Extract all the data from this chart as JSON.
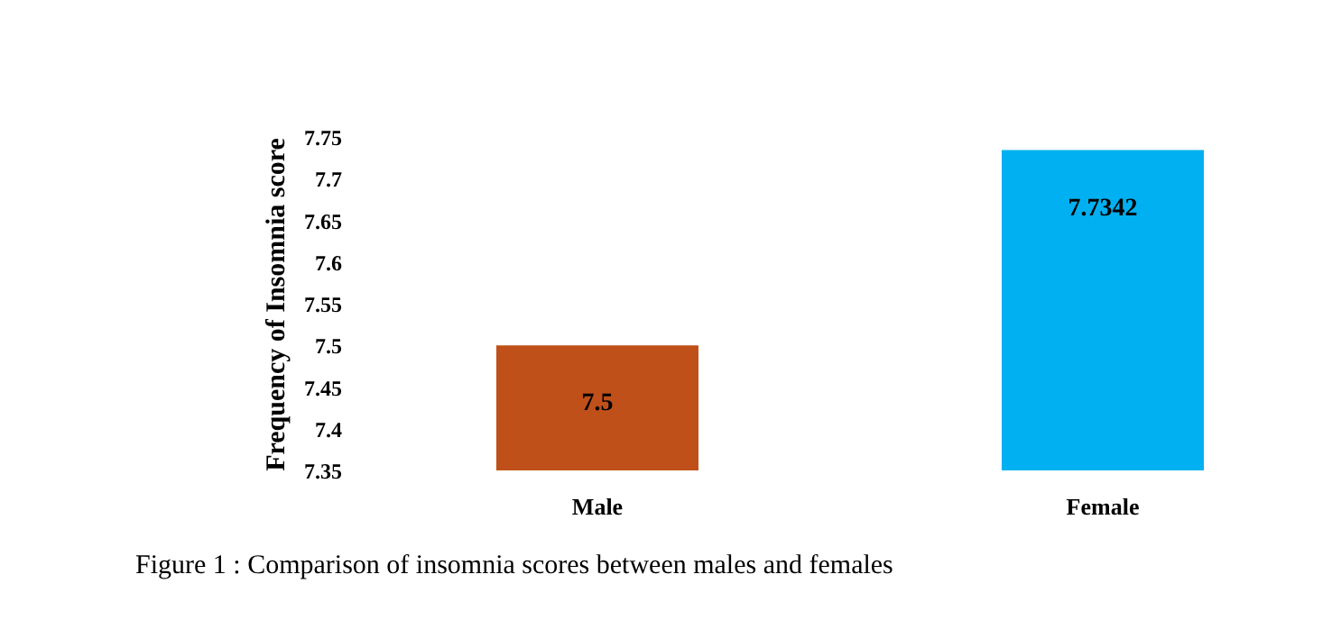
{
  "chart_data": {
    "type": "bar",
    "ylabel": "Frequency of Insomnia score",
    "categories": [
      "Male",
      "Female"
    ],
    "values": [
      7.5,
      7.7342
    ],
    "colors": [
      "#c0501a",
      "#00b0f0"
    ],
    "ylim": [
      7.35,
      7.75
    ],
    "yticks": [
      7.35,
      7.4,
      7.45,
      7.5,
      7.55,
      7.6,
      7.65,
      7.7,
      7.75
    ],
    "data_labels": true,
    "grid": false,
    "annotations": [
      "Figure 1 : Comparison of insomnia scores between males and females"
    ]
  }
}
